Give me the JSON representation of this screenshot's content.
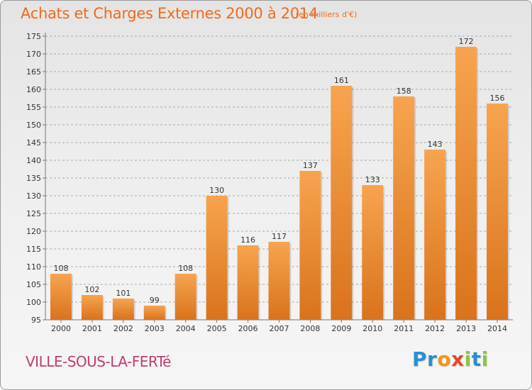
{
  "header": {
    "title": "Achats et Charges Externes 2000 à 2014",
    "unit": "(en milliers d'€)"
  },
  "footer": {
    "town": "VILLE-SOUS-LA-FERTé",
    "logo": {
      "letters": [
        "P",
        "r",
        "o",
        "x",
        "i",
        "t",
        "i"
      ],
      "colors": [
        "#2a8fd0",
        "#2a8fd0",
        "#f29420",
        "#e8452a",
        "#8dc63f",
        "#2a8fd0",
        "#8dc63f"
      ]
    }
  },
  "colors": {
    "bar_light": "#f7a44f",
    "bar_dark": "#d9731c",
    "title": "#f06a1c",
    "town": "#c23a76",
    "grid": "#a8a8a8"
  },
  "chart_data": {
    "type": "bar",
    "title": "Achats et Charges Externes 2000 à 2014",
    "xlabel": "",
    "ylabel": "",
    "categories": [
      "2000",
      "2001",
      "2002",
      "2003",
      "2004",
      "2005",
      "2006",
      "2007",
      "2008",
      "2009",
      "2010",
      "2011",
      "2012",
      "2013",
      "2014"
    ],
    "values": [
      108,
      102,
      101,
      99,
      108,
      130,
      116,
      117,
      137,
      161,
      133,
      158,
      143,
      172,
      156
    ],
    "ylim": [
      95,
      175
    ],
    "yticks": [
      95,
      100,
      105,
      110,
      115,
      120,
      125,
      130,
      135,
      140,
      145,
      150,
      155,
      160,
      165,
      170,
      175
    ],
    "grid": "horizontal dashed"
  }
}
